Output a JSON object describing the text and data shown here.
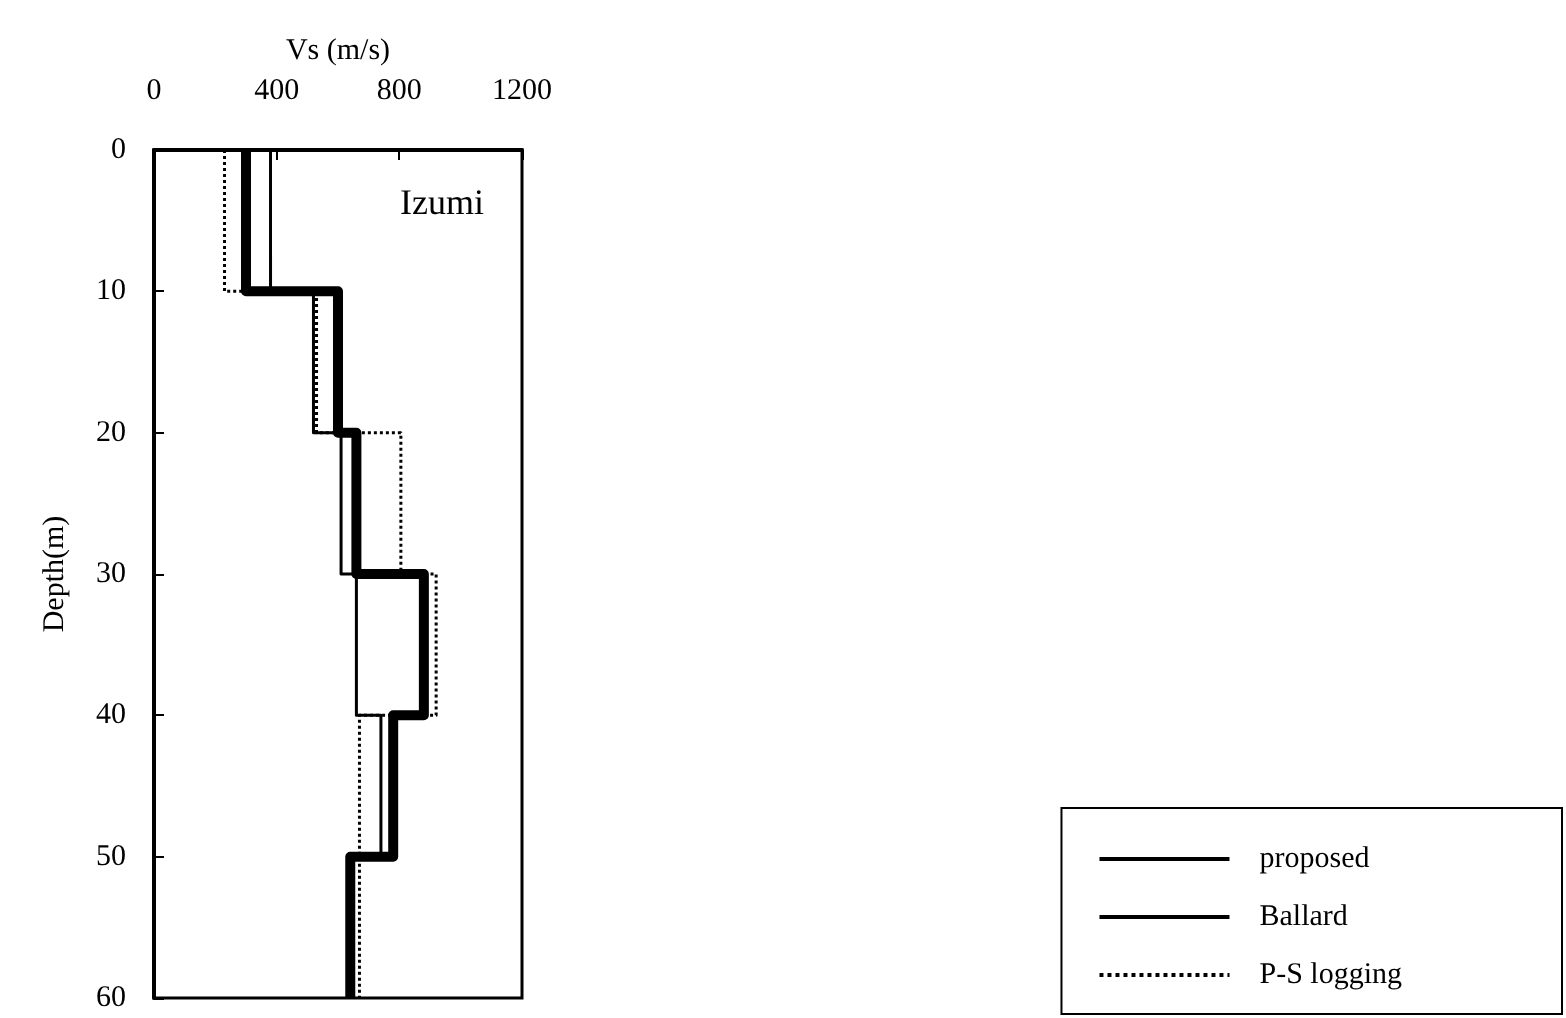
{
  "chart_data": {
    "type": "line",
    "xlabel": "Vs (m/s)",
    "ylabel": "Depth(m)",
    "xlim": [
      0,
      1200
    ],
    "xticks": [
      0,
      400,
      800,
      1200
    ],
    "ylim": [
      60,
      0
    ],
    "yticks": [
      0,
      10,
      20,
      30,
      40,
      50,
      60
    ],
    "annotations": [
      "Izumi"
    ],
    "legend": "bottom right",
    "grid": false,
    "marker": "none",
    "series": [
      {
        "name": "proposed",
        "color": "#000000",
        "line_style": "solid",
        "x": [
          300,
          300,
          600,
          600,
          660,
          660,
          880,
          880,
          780,
          780,
          640,
          640
        ],
        "values": [
          0,
          10,
          10,
          20,
          20,
          30,
          30,
          40,
          40,
          50,
          50,
          60
        ]
      },
      {
        "name": "Ballard",
        "color": "#000000",
        "line_style": "solid",
        "x": [
          380,
          380,
          520,
          520,
          610,
          610,
          660,
          660,
          740,
          740,
          640,
          640
        ],
        "values": [
          0,
          10,
          10,
          20,
          20,
          30,
          30,
          40,
          40,
          50,
          50,
          60
        ]
      },
      {
        "name": "P-S logging",
        "color": "#000000",
        "line_style": "dotted",
        "x": [
          230,
          230,
          530,
          530,
          805,
          805,
          920,
          920,
          670,
          670,
          670,
          670
        ],
        "values": [
          0,
          10,
          10,
          20,
          20,
          30,
          30,
          40,
          40,
          50,
          50,
          60
        ]
      }
    ]
  }
}
